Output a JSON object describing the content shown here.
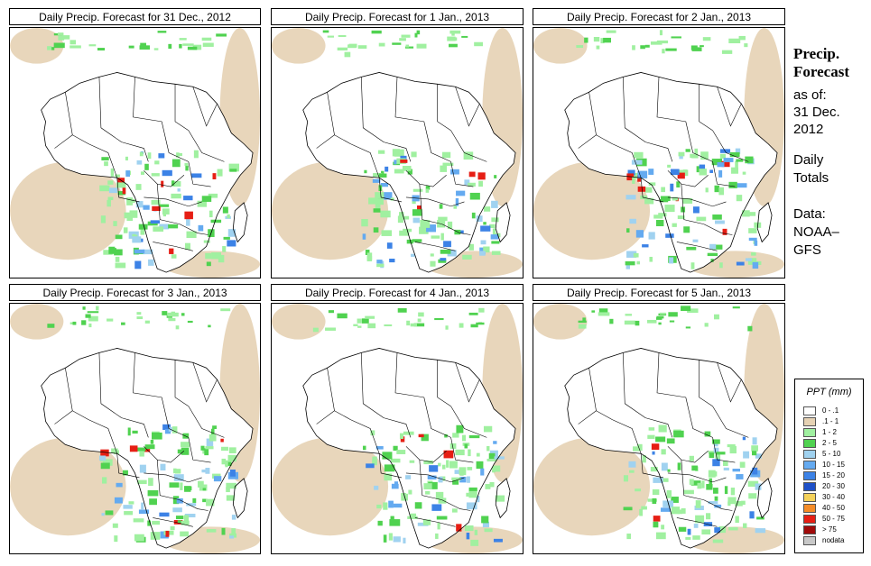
{
  "panels": [
    {
      "title": "Daily Precip. Forecast for  31 Dec., 2012"
    },
    {
      "title": "Daily Precip. Forecast for  1 Jan., 2013"
    },
    {
      "title": "Daily Precip. Forecast for  2 Jan., 2013"
    },
    {
      "title": "Daily Precip. Forecast for  3 Jan., 2013"
    },
    {
      "title": "Daily Precip. Forecast for  4 Jan., 2013"
    },
    {
      "title": "Daily Precip. Forecast for  5 Jan., 2013"
    }
  ],
  "side": {
    "heading1": "Precip.",
    "heading2": "Forecast",
    "asof": "as of:",
    "date1": "31 Dec.",
    "date2": "2012",
    "daily1": "Daily",
    "daily2": "Totals",
    "data1": "Data:",
    "data2": "NOAA–",
    "data3": "GFS"
  },
  "legend": {
    "title": "PPT (mm)",
    "items": [
      {
        "label": "0 - .1",
        "color": "#ffffff"
      },
      {
        "label": ".1 - 1",
        "color": "#e6d2b4"
      },
      {
        "label": "1 - 2",
        "color": "#a0f0a0"
      },
      {
        "label": "2 - 5",
        "color": "#50d250"
      },
      {
        "label": "5 - 10",
        "color": "#a0d2f0"
      },
      {
        "label": "10 - 15",
        "color": "#64aaf0"
      },
      {
        "label": "15 - 20",
        "color": "#3c82e6"
      },
      {
        "label": "20 - 30",
        "color": "#1e50c8"
      },
      {
        "label": "30 - 40",
        "color": "#f5d25a"
      },
      {
        "label": "40 - 50",
        "color": "#f58c28"
      },
      {
        "label": "50 - 75",
        "color": "#e61e14"
      },
      {
        "label": "> 75",
        "color": "#a00a0a"
      },
      {
        "label": "nodata",
        "color": "#c8c8c8"
      }
    ]
  }
}
